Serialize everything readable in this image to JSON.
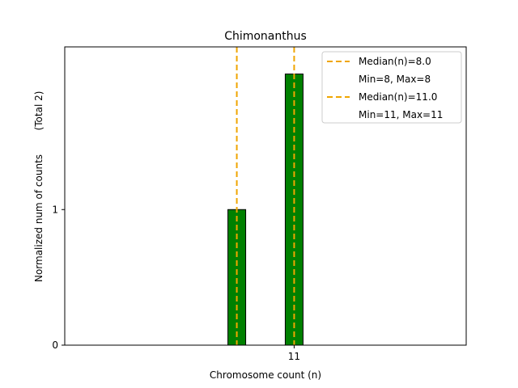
{
  "chart_data": {
    "type": "bar",
    "title": "Chimonanthus",
    "xlabel": "Chromosome count (n)",
    "ylabel": "Normalized num of counts",
    "ylabel_total": "(Total 2)",
    "x_ticks": [
      11
    ],
    "y_ticks": [
      0,
      1
    ],
    "xlim": [
      -1,
      20
    ],
    "ylim": [
      0,
      2.2
    ],
    "grid": false,
    "legend_position": "top-right",
    "bars": [
      {
        "x": 8,
        "value": 1
      },
      {
        "x": 11,
        "value": 2
      }
    ],
    "median_lines": [
      {
        "x": 8,
        "label": "Median(n)=8.0",
        "range_label": "Min=8, Max=8"
      },
      {
        "x": 11,
        "label": "Median(n)=11.0",
        "range_label": "Min=11, Max=11"
      }
    ],
    "colors": {
      "bar_fill": "#008000",
      "bar_edge": "#000000",
      "median_line": "#f0a500"
    }
  }
}
